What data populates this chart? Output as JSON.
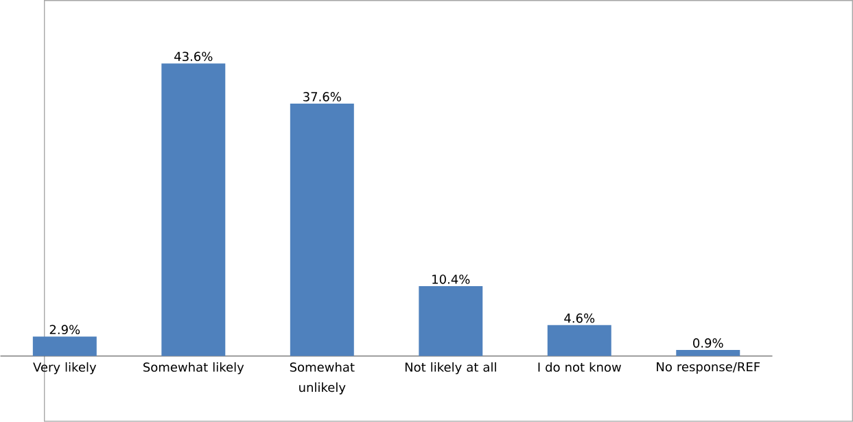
{
  "chart_data": {
    "type": "bar",
    "categories": [
      "Very likely",
      "Somewhat likely",
      "Somewhat unlikely",
      "Not likely at all",
      "I do not know",
      "No response/REF"
    ],
    "values": [
      2.9,
      43.6,
      37.6,
      10.4,
      4.6,
      0.9
    ],
    "value_labels": [
      "2.9%",
      "43.6%",
      "37.6%",
      "10.4%",
      "4.6%",
      "0.9%"
    ],
    "color": "#4f81bd"
  }
}
